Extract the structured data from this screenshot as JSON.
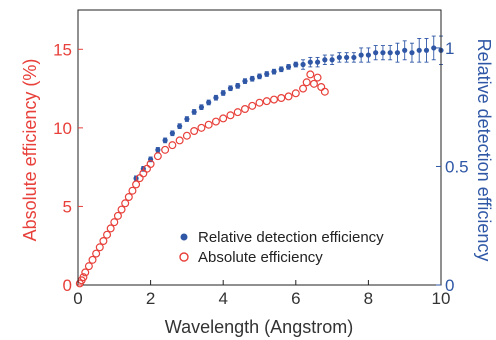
{
  "chart_data": {
    "type": "scatter",
    "xlabel": "Wavelength (Angstrom)",
    "ylabel_left": "Absolute efficiency (%)",
    "ylabel_right": "Relative detection efficiency",
    "xlim": [
      0,
      10
    ],
    "ylim_left": [
      0,
      17.5
    ],
    "ylim_right": [
      0,
      1.16
    ],
    "xticks": [
      "0",
      "2",
      "4",
      "6",
      "8",
      "10"
    ],
    "yticks_left": [
      "0",
      "5",
      "10",
      "15"
    ],
    "yticks_right": [
      "0",
      "0.5",
      "1"
    ],
    "grid": false,
    "legend_placement": "bottom-right",
    "series": [
      {
        "name": "Relative detection efficiency",
        "marker": "filled-circle",
        "axis": "right",
        "color": "#2f57a6",
        "x": [
          1.6,
          1.8,
          2.0,
          2.2,
          2.4,
          2.6,
          2.8,
          3.0,
          3.2,
          3.4,
          3.6,
          3.8,
          4.0,
          4.2,
          4.4,
          4.6,
          4.8,
          5.0,
          5.2,
          5.4,
          5.6,
          5.8,
          6.0,
          6.2,
          6.4,
          6.6,
          6.8,
          7.0,
          7.2,
          7.4,
          7.6,
          7.8,
          8.0,
          8.2,
          8.4,
          8.6,
          8.8,
          9.0,
          9.2,
          9.4,
          9.6,
          9.8,
          10.0
        ],
        "y": [
          0.45,
          0.49,
          0.53,
          0.57,
          0.61,
          0.64,
          0.67,
          0.7,
          0.73,
          0.75,
          0.77,
          0.79,
          0.81,
          0.83,
          0.84,
          0.86,
          0.87,
          0.88,
          0.89,
          0.9,
          0.91,
          0.92,
          0.93,
          0.93,
          0.94,
          0.94,
          0.95,
          0.95,
          0.96,
          0.96,
          0.96,
          0.97,
          0.97,
          0.98,
          0.98,
          0.98,
          0.98,
          0.99,
          0.98,
          0.99,
          0.99,
          1.0,
          0.99
        ],
        "err": [
          0.01,
          0.01,
          0.01,
          0.01,
          0.01,
          0.01,
          0.01,
          0.01,
          0.01,
          0.01,
          0.01,
          0.01,
          0.01,
          0.01,
          0.01,
          0.01,
          0.01,
          0.01,
          0.01,
          0.01,
          0.01,
          0.01,
          0.01,
          0.02,
          0.02,
          0.02,
          0.02,
          0.02,
          0.02,
          0.02,
          0.02,
          0.03,
          0.03,
          0.03,
          0.03,
          0.03,
          0.04,
          0.04,
          0.04,
          0.05,
          0.05,
          0.05,
          0.06
        ]
      },
      {
        "name": "Absolute efficiency",
        "marker": "open-circle",
        "axis": "left",
        "color": "#e8403a",
        "x": [
          0.05,
          0.1,
          0.15,
          0.2,
          0.3,
          0.4,
          0.5,
          0.6,
          0.7,
          0.8,
          0.9,
          1.0,
          1.1,
          1.2,
          1.3,
          1.4,
          1.5,
          1.6,
          1.7,
          1.8,
          1.9,
          2.0,
          2.2,
          2.4,
          2.6,
          2.8,
          3.0,
          3.2,
          3.4,
          3.6,
          3.8,
          4.0,
          4.2,
          4.4,
          4.6,
          4.8,
          5.0,
          5.2,
          5.4,
          5.6,
          5.8,
          6.0,
          6.2,
          6.3,
          6.4,
          6.5,
          6.6,
          6.7,
          6.8
        ],
        "y": [
          0.1,
          0.3,
          0.5,
          0.8,
          1.2,
          1.6,
          2.0,
          2.4,
          2.8,
          3.2,
          3.6,
          4.0,
          4.4,
          4.8,
          5.2,
          5.6,
          6.0,
          6.4,
          6.8,
          7.1,
          7.4,
          7.7,
          8.2,
          8.6,
          8.9,
          9.2,
          9.5,
          9.8,
          10.0,
          10.2,
          10.4,
          10.6,
          10.8,
          11.0,
          11.2,
          11.4,
          11.6,
          11.7,
          11.8,
          11.9,
          12.0,
          12.2,
          12.5,
          12.9,
          13.4,
          12.8,
          13.2,
          12.6,
          12.3
        ]
      }
    ]
  }
}
